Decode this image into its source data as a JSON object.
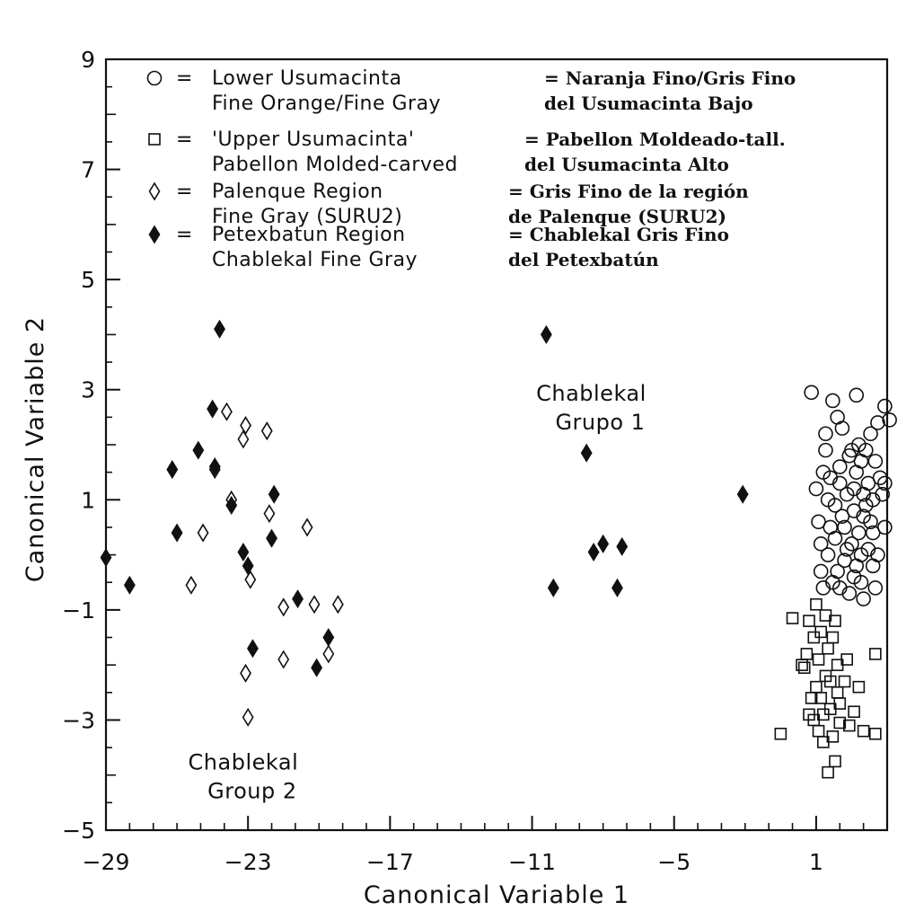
{
  "chart_data": {
    "type": "scatter",
    "xlabel": "Canonical Variable 1",
    "ylabel": "Canonical Variable 2",
    "xlim": [
      -29,
      4
    ],
    "ylim": [
      -5,
      9
    ],
    "x_ticks": [
      -29,
      -23,
      -17,
      -11,
      -5,
      1
    ],
    "y_ticks": [
      -5,
      -3,
      -1,
      1,
      3,
      5,
      7,
      9
    ],
    "grid": false,
    "legend_position": "top-left",
    "legend": [
      {
        "symbol": "open-circle",
        "en": [
          "Lower Usumacinta",
          "Fine Orange/Fine Gray"
        ],
        "es": [
          "= Naranja Fino/Gris Fino",
          "del Usumacinta Bajo"
        ]
      },
      {
        "symbol": "open-square",
        "en": [
          "'Upper Usumacinta'",
          "Pabellon Molded-carved"
        ],
        "es": [
          "= Pabellon Moldeado-tall.",
          "del Usumacinta Alto"
        ]
      },
      {
        "symbol": "open-diamond",
        "en": [
          "Palenque Region",
          "Fine Gray (SURU2)"
        ],
        "es": [
          "= Gris Fino de la región",
          "de Palenque (SURU2)"
        ]
      },
      {
        "symbol": "filled-diamond",
        "en": [
          "Petexbatun Region",
          "Chablekal Fine Gray"
        ],
        "es": [
          "= Chablekal Gris Fino",
          "del Petexbatún"
        ]
      }
    ],
    "annotations": [
      {
        "lines": [
          "Chablekal",
          "Grupo 1"
        ],
        "x": -8.5,
        "y": 2.8
      },
      {
        "lines": [
          "Chablekal",
          "Group 2"
        ],
        "x": -23.2,
        "y": -3.9
      }
    ],
    "series": [
      {
        "marker": "filled-diamond",
        "points": [
          [
            -29,
            -0.05
          ],
          [
            -28,
            -0.55
          ],
          [
            -26.2,
            1.55
          ],
          [
            -26,
            0.4
          ],
          [
            -25.1,
            1.9
          ],
          [
            -24.5,
            2.65
          ],
          [
            -24.4,
            1.6
          ],
          [
            -24.2,
            4.1
          ],
          [
            -23.7,
            0.9
          ],
          [
            -23.2,
            0.05
          ],
          [
            -23,
            -0.2
          ],
          [
            -22.8,
            -1.7
          ],
          [
            -22,
            0.3
          ],
          [
            -21.9,
            1.1
          ],
          [
            -20.9,
            -0.8
          ],
          [
            -20.1,
            -2.05
          ],
          [
            -19.6,
            -1.5
          ],
          [
            -10.4,
            4.0
          ],
          [
            -10.1,
            -0.6
          ],
          [
            -8.7,
            1.85
          ],
          [
            -8.4,
            0.05
          ],
          [
            -8,
            0.2
          ],
          [
            -7.4,
            -0.6
          ],
          [
            -7.2,
            0.15
          ],
          [
            -2.1,
            1.1
          ]
        ]
      },
      {
        "marker": "open-diamond",
        "points": [
          [
            -25.4,
            -0.55
          ],
          [
            -24.9,
            0.4
          ],
          [
            -24.4,
            1.55
          ],
          [
            -23.9,
            2.6
          ],
          [
            -23.7,
            1.0
          ],
          [
            -23.2,
            2.1
          ],
          [
            -23.1,
            2.35
          ],
          [
            -22.9,
            -0.45
          ],
          [
            -23.1,
            -2.15
          ],
          [
            -23,
            -2.95
          ],
          [
            -22.2,
            2.25
          ],
          [
            -22.1,
            0.75
          ],
          [
            -21.5,
            -0.95
          ],
          [
            -21.5,
            -1.9
          ],
          [
            -20.5,
            0.5
          ],
          [
            -20.2,
            -0.9
          ],
          [
            -19.6,
            -1.8
          ],
          [
            -19.2,
            -0.9
          ]
        ]
      },
      {
        "marker": "open-circle",
        "points": [
          [
            0.8,
            2.95
          ],
          [
            1.2,
            0.2
          ],
          [
            1.5,
            0.0
          ],
          [
            1.8,
            0.9
          ],
          [
            2.0,
            1.6
          ],
          [
            2.2,
            0.5
          ],
          [
            2.4,
            1.8
          ],
          [
            2.6,
            -0.4
          ],
          [
            2.8,
            2.0
          ],
          [
            3.0,
            0.7
          ],
          [
            3.2,
            1.3
          ],
          [
            3.4,
            -0.2
          ],
          [
            3.6,
            2.4
          ],
          [
            3.8,
            1.1
          ],
          [
            3.9,
            0.5
          ],
          [
            1.7,
            2.8
          ],
          [
            2.7,
            2.9
          ],
          [
            3.9,
            2.7
          ],
          [
            4.1,
            2.45
          ],
          [
            1.0,
            1.2
          ],
          [
            1.4,
            1.9
          ],
          [
            1.6,
            1.4
          ],
          [
            2.1,
            2.3
          ],
          [
            2.3,
            1.1
          ],
          [
            2.5,
            0.2
          ],
          [
            2.7,
            1.5
          ],
          [
            2.9,
            0.0
          ],
          [
            3.1,
            1.9
          ],
          [
            3.3,
            0.6
          ],
          [
            3.5,
            1.7
          ],
          [
            1.3,
            -0.6
          ],
          [
            1.9,
            -0.3
          ],
          [
            2.4,
            -0.7
          ],
          [
            2.9,
            -0.5
          ],
          [
            3.6,
            0.0
          ],
          [
            1.1,
            0.6
          ],
          [
            1.8,
            0.3
          ],
          [
            2.6,
            0.8
          ],
          [
            3.0,
            1.1
          ],
          [
            3.7,
            1.4
          ],
          [
            1.5,
            1.0
          ],
          [
            2.0,
            1.3
          ],
          [
            2.2,
            -0.1
          ],
          [
            2.8,
            0.4
          ],
          [
            3.3,
            2.2
          ],
          [
            1.2,
            -0.3
          ],
          [
            1.6,
            0.5
          ],
          [
            2.5,
            1.9
          ],
          [
            3.2,
            0.1
          ],
          [
            3.9,
            1.3
          ],
          [
            1.4,
            2.2
          ],
          [
            2.1,
            0.7
          ],
          [
            2.7,
            -0.2
          ],
          [
            3.4,
            1.0
          ],
          [
            1.9,
            2.5
          ],
          [
            2.3,
            0.1
          ],
          [
            3.0,
            -0.8
          ],
          [
            3.5,
            -0.6
          ],
          [
            1.7,
            -0.5
          ],
          [
            2.6,
            1.2
          ],
          [
            3.1,
            0.9
          ],
          [
            2.0,
            -0.6
          ],
          [
            1.3,
            1.5
          ],
          [
            2.9,
            1.7
          ],
          [
            3.4,
            0.4
          ]
        ]
      },
      {
        "marker": "open-square",
        "points": [
          [
            -0.5,
            -3.25
          ],
          [
            0,
            -1.15
          ],
          [
            0.5,
            -2.05
          ],
          [
            0.7,
            -1.2
          ],
          [
            0.8,
            -2.6
          ],
          [
            0.9,
            -3.0
          ],
          [
            1.0,
            -0.9
          ],
          [
            1.0,
            -2.4
          ],
          [
            1.1,
            -3.2
          ],
          [
            1.2,
            -1.4
          ],
          [
            1.3,
            -3.4
          ],
          [
            1.4,
            -2.2
          ],
          [
            1.5,
            -3.95
          ],
          [
            1.5,
            -1.7
          ],
          [
            1.6,
            -2.8
          ],
          [
            1.7,
            -1.5
          ],
          [
            1.8,
            -3.75
          ],
          [
            1.9,
            -2.0
          ],
          [
            2.0,
            -3.05
          ],
          [
            2.2,
            -2.3
          ],
          [
            2.4,
            -3.1
          ],
          [
            2.6,
            -2.85
          ],
          [
            2.8,
            -2.4
          ],
          [
            3.0,
            -3.2
          ],
          [
            3.5,
            -1.8
          ],
          [
            3.5,
            -3.25
          ],
          [
            0.6,
            -1.8
          ],
          [
            0.9,
            -1.5
          ],
          [
            1.2,
            -2.6
          ],
          [
            1.4,
            -1.1
          ],
          [
            1.6,
            -2.3
          ],
          [
            1.8,
            -1.2
          ],
          [
            2.0,
            -2.7
          ],
          [
            1.1,
            -1.9
          ],
          [
            1.3,
            -2.9
          ],
          [
            1.7,
            -3.3
          ],
          [
            0.4,
            -2.0
          ],
          [
            2.3,
            -1.9
          ],
          [
            1.9,
            -2.5
          ],
          [
            0.7,
            -2.9
          ]
        ]
      }
    ]
  }
}
